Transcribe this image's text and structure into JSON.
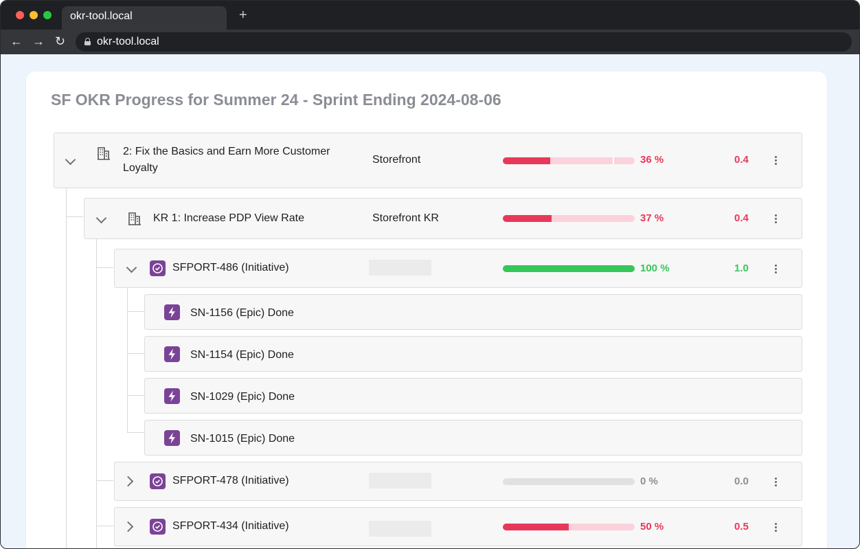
{
  "browser": {
    "tab_title": "okr-tool.local",
    "url": "okr-tool.local",
    "new_tab_symbol": "+",
    "back_icon": "←",
    "forward_icon": "→",
    "reload_icon": "↻"
  },
  "page": {
    "title": "SF OKR Progress for Summer 24 - Sprint Ending 2024-08-06"
  },
  "colors": {
    "red": "#e8385a",
    "red_track": "#fbd2db",
    "green": "#34c759",
    "grey_track": "#e1e1e1",
    "icon_purple": "#7b4397"
  },
  "tree": {
    "objective": {
      "title_line1": "2: Fix the Basics and Earn More Customer",
      "title_line2": "Loyalty",
      "team": "Storefront",
      "percent": "36 %",
      "progress": 0.36,
      "score": "0.4",
      "icon": "building-icon"
    },
    "kr": {
      "title": "KR 1: Increase PDP View Rate",
      "team": "Storefront KR",
      "percent": "37 %",
      "progress": 0.37,
      "score": "0.4",
      "icon": "building-icon"
    },
    "initiatives": [
      {
        "title": "SFPORT-486 (Initiative)",
        "percent": "100 %",
        "progress": 1.0,
        "score": "1.0",
        "icon": "check-circle-icon"
      },
      {
        "title": "SFPORT-478 (Initiative)",
        "percent": "0 %",
        "progress": 0.0,
        "score": "0.0",
        "icon": "check-circle-icon"
      },
      {
        "title": "SFPORT-434 (Initiative)",
        "percent": "50 %",
        "progress": 0.5,
        "score": "0.5",
        "icon": "check-circle-icon"
      }
    ],
    "epics": [
      {
        "title": "SN-1156 (Epic) Done",
        "icon": "lightning-icon"
      },
      {
        "title": "SN-1154 (Epic) Done",
        "icon": "lightning-icon"
      },
      {
        "title": "SN-1029 (Epic) Done",
        "icon": "lightning-icon"
      },
      {
        "title": "SN-1015 (Epic) Done",
        "icon": "lightning-icon"
      }
    ]
  }
}
